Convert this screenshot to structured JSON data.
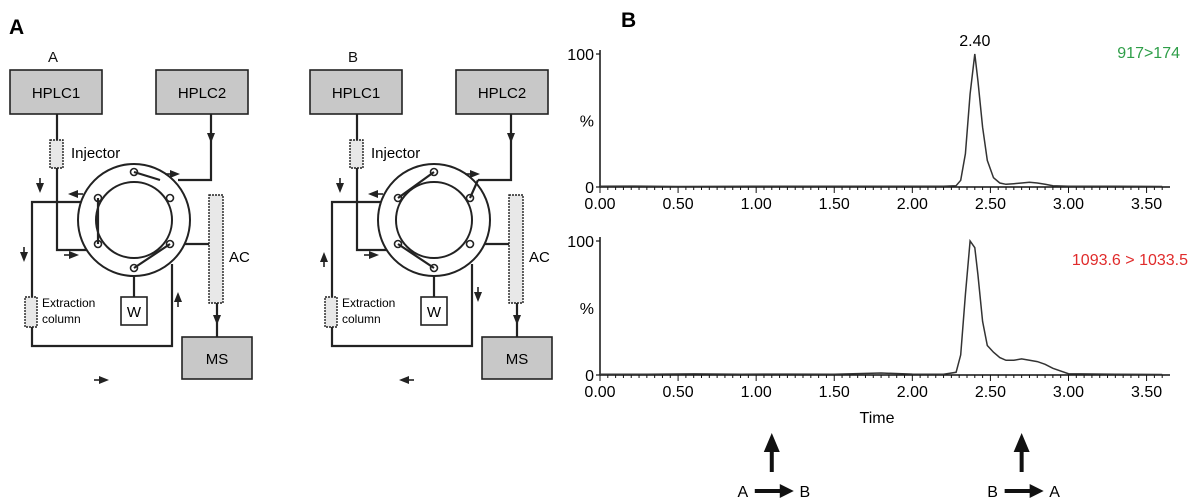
{
  "panel_labels": {
    "left": "A",
    "right": "B"
  },
  "schematics": [
    {
      "title": "A",
      "hplc1": "HPLC1",
      "hplc2": "HPLC2",
      "injector": "Injector",
      "extraction": [
        "Extraction",
        "column"
      ],
      "ac": "AC",
      "waste": "W",
      "ms": "MS"
    },
    {
      "title": "B",
      "hplc1": "HPLC1",
      "hplc2": "HPLC2",
      "injector": "Injector",
      "extraction": [
        "Extraction",
        "column"
      ],
      "ac": "AC",
      "waste": "W",
      "ms": "MS"
    }
  ],
  "switch_events": [
    {
      "time": 1.1,
      "from": "A",
      "to": "B"
    },
    {
      "time": 2.7,
      "from": "B",
      "to": "A"
    }
  ],
  "colors": {
    "transition_top": "#2e9e48",
    "transition_bottom": "#e02b2b",
    "box_fill": "#c8c8c8",
    "line": "#222222"
  },
  "chart_data": [
    {
      "type": "line",
      "transition": "917>174",
      "peak_label": "2.40",
      "xlabel": "",
      "ylabel": "%",
      "xlim": [
        0,
        3.65
      ],
      "ylim": [
        0,
        100
      ],
      "xticks": [
        "0.00",
        "0.50",
        "1.00",
        "1.50",
        "2.00",
        "2.50",
        "3.00",
        "3.50"
      ],
      "yticks": [
        "0",
        "100"
      ],
      "x": [
        0,
        0.2,
        0.5,
        1.0,
        1.5,
        2.0,
        2.2,
        2.28,
        2.31,
        2.34,
        2.37,
        2.4,
        2.42,
        2.45,
        2.48,
        2.52,
        2.56,
        2.6,
        2.65,
        2.7,
        2.75,
        2.8,
        2.85,
        2.9,
        3.0,
        3.3,
        3.6
      ],
      "y": [
        0.5,
        0.7,
        0.4,
        0.6,
        0.5,
        0.6,
        0.5,
        1,
        5,
        25,
        70,
        100,
        80,
        45,
        20,
        7,
        3,
        2,
        2.5,
        3,
        3.5,
        3,
        2,
        1,
        0.5,
        0.5,
        0.4
      ]
    },
    {
      "type": "line",
      "transition": "1093.6 > 1033.5",
      "xlabel": "Time",
      "ylabel": "%",
      "xlim": [
        0,
        3.65
      ],
      "ylim": [
        0,
        100
      ],
      "xticks": [
        "0.00",
        "0.50",
        "1.00",
        "1.50",
        "2.00",
        "2.50",
        "3.00",
        "3.50"
      ],
      "yticks": [
        "0",
        "100"
      ],
      "x": [
        0,
        0.3,
        0.6,
        0.9,
        1.2,
        1.5,
        1.8,
        2.0,
        2.2,
        2.28,
        2.31,
        2.34,
        2.37,
        2.4,
        2.42,
        2.45,
        2.48,
        2.52,
        2.56,
        2.6,
        2.65,
        2.7,
        2.75,
        2.8,
        2.85,
        2.9,
        3.0,
        3.3,
        3.6
      ],
      "y": [
        0.5,
        0.6,
        0.8,
        0.6,
        0.7,
        0.6,
        1.5,
        0.7,
        0.6,
        2,
        15,
        60,
        100,
        95,
        75,
        40,
        22,
        17,
        13,
        11,
        11,
        12,
        11,
        10,
        8,
        5,
        1,
        0.5,
        0.4
      ]
    }
  ]
}
